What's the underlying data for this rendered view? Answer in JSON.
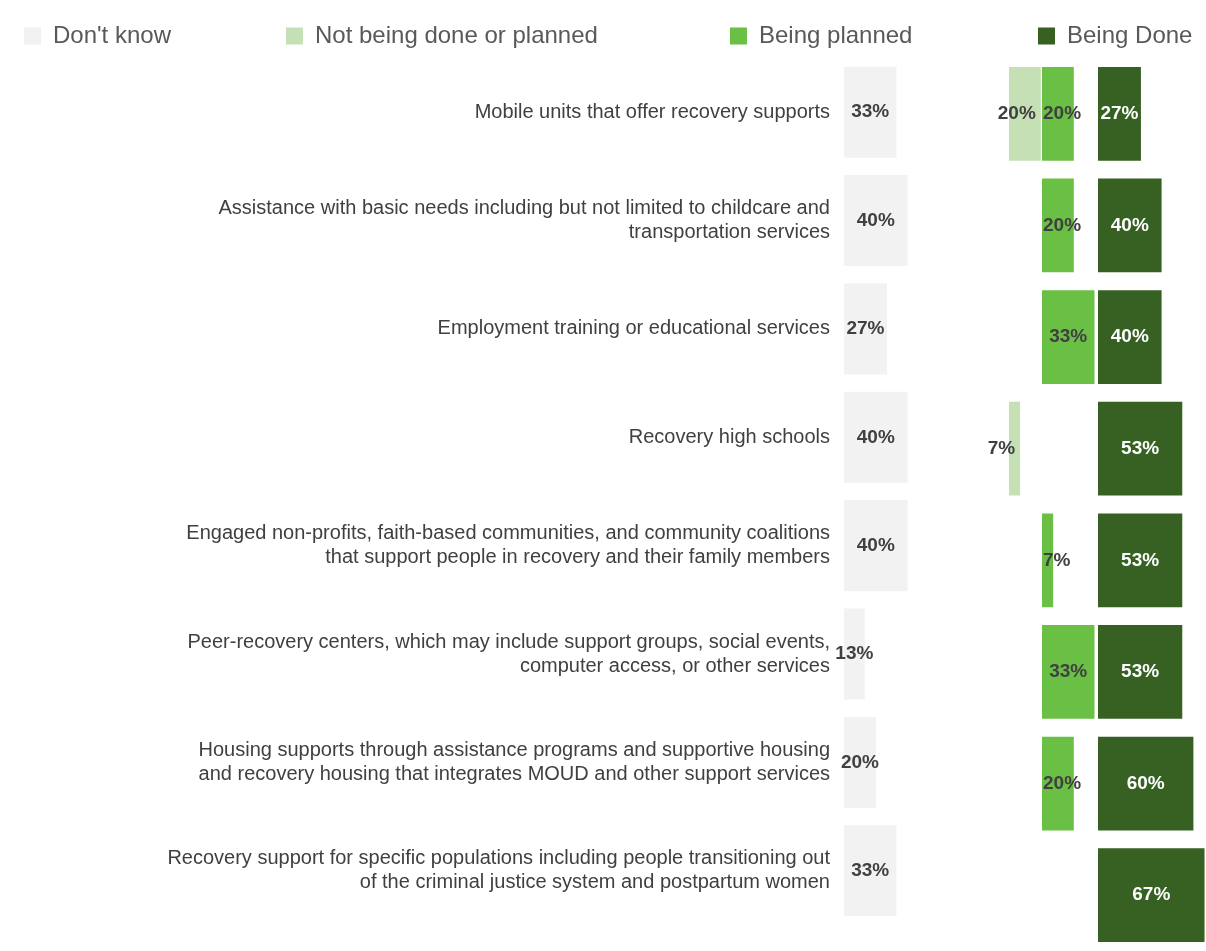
{
  "chart_data": [
    {
      "type": "bar",
      "orientation": "horizontal",
      "categories": [
        "Mobile units that offer recovery supports",
        "Assistance with basic needs including but not limited to childcare and transportation services",
        "Employment training or educational services",
        "Recovery high schools",
        "Engaged non-profits, faith-based communities, and community coalitions that support people in recovery and their family members",
        "Peer-recovery centers, which may include support groups, social events, computer access, or other services",
        "Housing supports through assistance programs and supportive housing and recovery housing that integrates MOUD and other support services",
        "Recovery support for specific populations including people transitioning out of the criminal justice system and postpartum women"
      ],
      "series": [
        {
          "name": "Don't know",
          "color": "#f2f2f2",
          "values": [
            33,
            40,
            27,
            40,
            40,
            13,
            20,
            33
          ],
          "value_labels": [
            "33%",
            "40%",
            "27%",
            "40%",
            "40%",
            "13%",
            "20%",
            "33%"
          ]
        }
      ],
      "tick_labels": "y",
      "grid": false,
      "legend": "top left"
    },
    {
      "type": "bar",
      "orientation": "horizontal",
      "categories": [
        null,
        null,
        null,
        null,
        null,
        null,
        null,
        null
      ],
      "series": [
        {
          "name": "Not being done or planned",
          "color": "#c5e0b4",
          "values": [
            20,
            null,
            null,
            7,
            null,
            null,
            null,
            null
          ],
          "value_labels": [
            "20%",
            null,
            null,
            "7%",
            null,
            null,
            null,
            null
          ]
        }
      ],
      "tick_labels": false,
      "grid": false,
      "legend": "top left"
    },
    {
      "type": "bar",
      "orientation": "horizontal",
      "categories": [
        null,
        null,
        null,
        null,
        null,
        null,
        null,
        null
      ],
      "series": [
        {
          "name": "Being planned",
          "color": "#6abf45",
          "values": [
            20,
            20,
            33,
            null,
            7,
            33,
            20,
            null
          ],
          "value_labels": [
            "20%",
            "20%",
            "33%",
            null,
            "7%",
            "33%",
            "20%",
            null
          ]
        }
      ],
      "tick_labels": false,
      "grid": false,
      "legend": "top left"
    },
    {
      "type": "bar",
      "orientation": "horizontal",
      "categories": [
        null,
        null,
        null,
        null,
        null,
        null,
        null,
        null
      ],
      "series": [
        {
          "name": "Being Done",
          "color": "#376123",
          "values": [
            27,
            40,
            40,
            53,
            53,
            53,
            60,
            67
          ],
          "value_labels": [
            "27%",
            "40%",
            "40%",
            "53%",
            "53%",
            "53%",
            "60%",
            "67%"
          ]
        }
      ],
      "tick_labels": false,
      "grid": false,
      "legend": "top left"
    }
  ]
}
